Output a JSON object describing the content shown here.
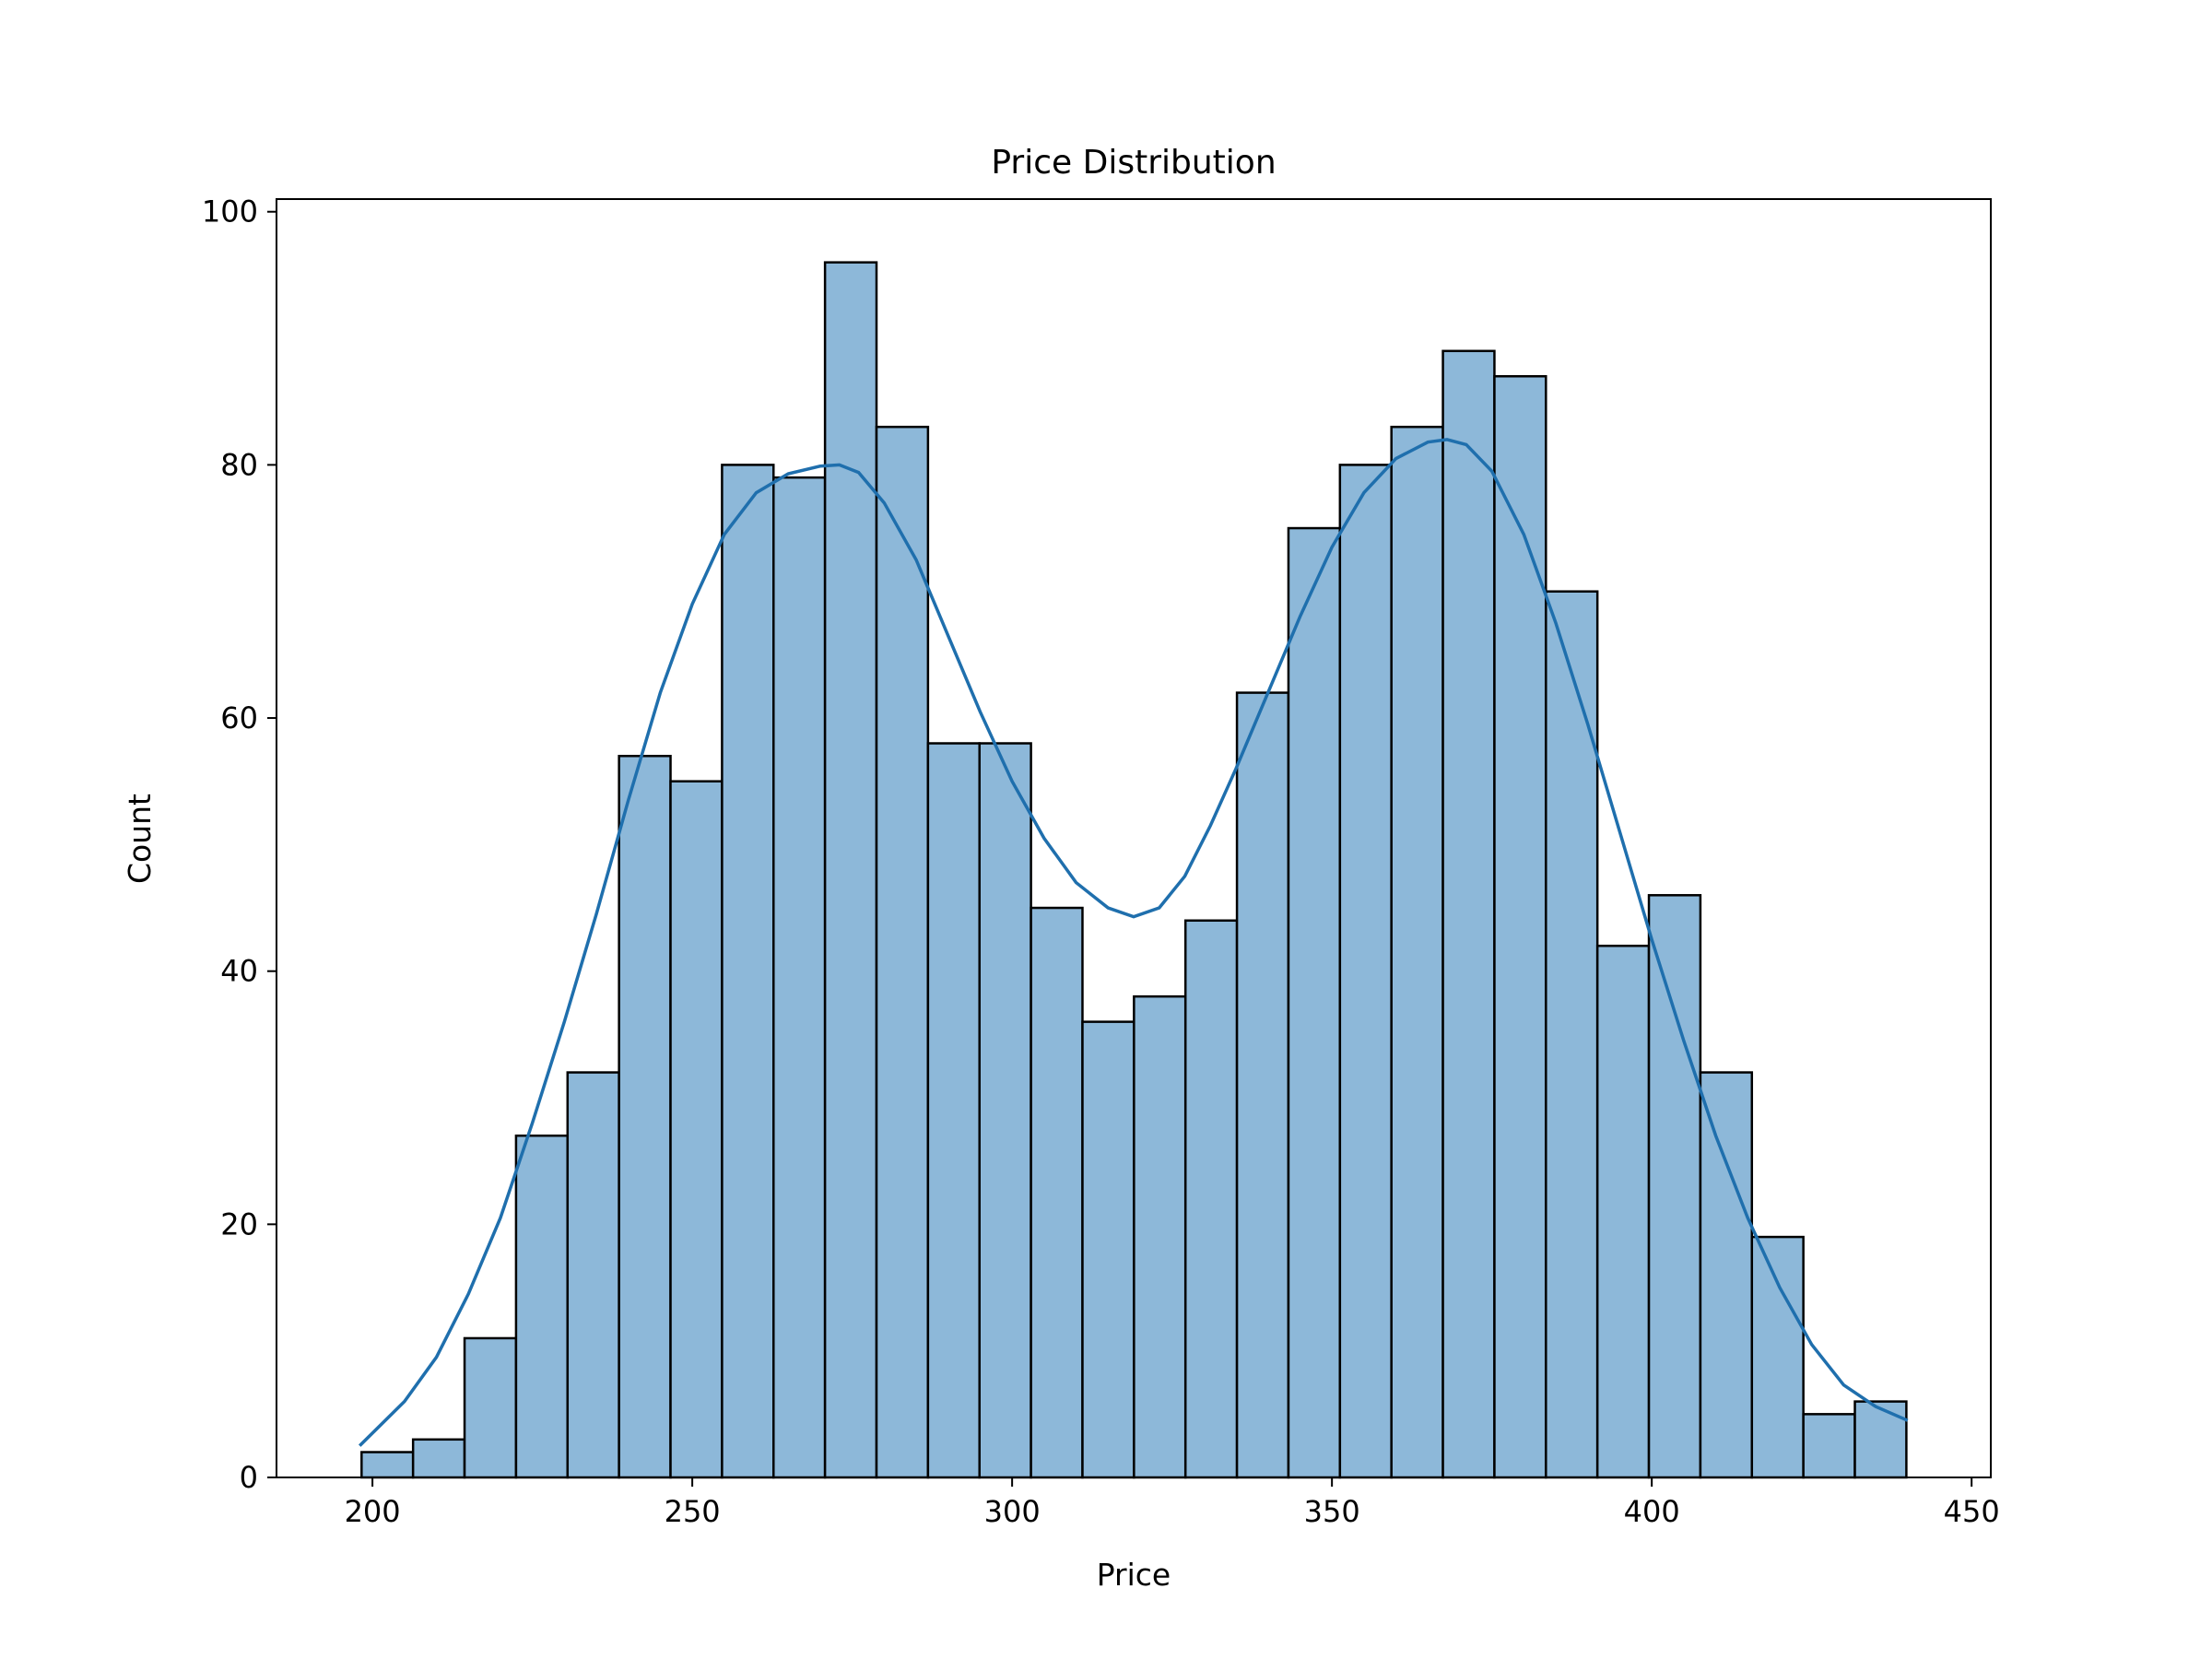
{
  "chart_data": {
    "type": "bar",
    "subtype": "histogram",
    "title": "Price Distribution",
    "xlabel": "Price",
    "ylabel": "Count",
    "xlim": [
      185,
      453
    ],
    "ylim": [
      0,
      101
    ],
    "x_ticks": [
      200,
      250,
      300,
      350,
      400,
      450
    ],
    "y_ticks": [
      0,
      20,
      40,
      60,
      80,
      100
    ],
    "bin_edges": [
      198.3,
      206.35,
      214.4,
      222.45,
      230.5,
      238.55,
      246.6,
      254.65,
      262.7,
      270.75,
      278.8,
      286.85,
      294.9,
      302.95,
      311.0,
      319.05,
      327.1,
      335.15,
      343.2,
      351.25,
      359.3,
      367.35,
      375.4,
      383.45,
      391.5,
      399.55,
      407.6,
      415.65,
      423.7,
      431.75,
      439.8
    ],
    "counts": [
      2,
      3,
      11,
      27,
      32,
      57,
      55,
      80,
      79,
      96,
      83,
      58,
      58,
      45,
      36,
      38,
      44,
      62,
      75,
      80,
      83,
      89,
      87,
      70,
      42,
      46,
      32,
      19,
      5,
      6
    ],
    "kde": {
      "x": [
        198,
        205,
        210,
        215,
        220,
        225,
        230,
        235,
        240,
        245,
        250,
        255,
        260,
        265,
        270,
        273,
        276,
        280,
        285,
        290,
        295,
        300,
        305,
        310,
        315,
        319,
        323,
        327,
        331,
        335,
        340,
        345,
        350,
        355,
        360,
        365,
        368,
        371,
        375,
        380,
        385,
        390,
        395,
        400,
        405,
        410,
        415,
        420,
        425,
        430,
        435,
        440
      ],
      "y": [
        2.5,
        6.0,
        9.5,
        14.5,
        20.5,
        28.0,
        36.0,
        44.5,
        53.5,
        62.0,
        69.0,
        74.5,
        77.8,
        79.3,
        79.9,
        80.0,
        79.4,
        77.0,
        72.5,
        66.5,
        60.5,
        55.0,
        50.5,
        47.0,
        45.0,
        44.3,
        45.0,
        47.5,
        51.5,
        56.0,
        62.0,
        68.0,
        73.5,
        77.8,
        80.5,
        81.8,
        82.0,
        81.6,
        79.5,
        74.5,
        67.5,
        59.5,
        51.0,
        42.5,
        34.5,
        27.0,
        20.5,
        15.0,
        10.5,
        7.3,
        5.6,
        4.5
      ]
    },
    "colors": {
      "bar_fill": "#8db8d9",
      "bar_edge": "#000000",
      "kde_line": "#1f6fad"
    },
    "grid": false,
    "legend": "none"
  }
}
